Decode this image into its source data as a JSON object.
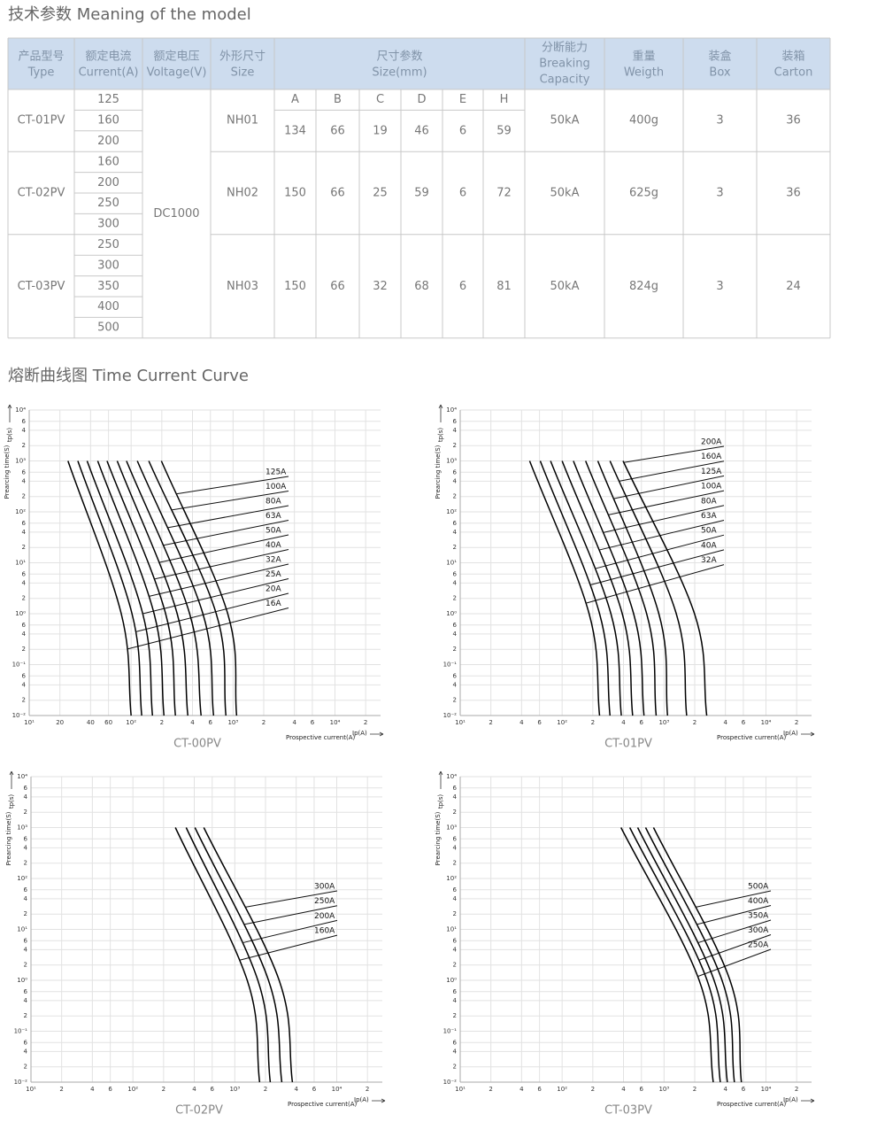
{
  "title": "技术参数 Meaning of the model",
  "table": {
    "header": [
      {
        "zh": "产品型号",
        "en": "Type"
      },
      {
        "zh": "额定电流",
        "en": "Current(A)"
      },
      {
        "zh": "额定电压",
        "en": "Voltage(V)"
      },
      {
        "zh": "外形尺寸",
        "en": "Size"
      },
      {
        "zh": "尺寸参数",
        "en": "Size(mm)"
      },
      {
        "zh": "分断能力",
        "en": [
          "Breaking",
          "Capacity"
        ]
      },
      {
        "zh": "重量",
        "en": "Weigth"
      },
      {
        "zh": "装盒",
        "en": "Box"
      },
      {
        "zh": "装箱",
        "en": "Carton"
      }
    ],
    "dims": [
      "A",
      "B",
      "C",
      "D",
      "E",
      "H"
    ],
    "voltage": "DC1000",
    "rows": [
      {
        "type": "CT-01PV",
        "currents": [
          125,
          160,
          200
        ],
        "size": "NH01",
        "dims": [
          134,
          66,
          19,
          46,
          6,
          59
        ],
        "breaking": "50kA",
        "weight": "400g",
        "box": 3,
        "carton": 36
      },
      {
        "type": "CT-02PV",
        "currents": [
          160,
          200,
          250,
          300
        ],
        "size": "NH02",
        "dims": [
          150,
          66,
          25,
          59,
          6,
          72
        ],
        "breaking": "50kA",
        "weight": "625g",
        "box": 3,
        "carton": 36
      },
      {
        "type": "CT-03PV",
        "currents": [
          250,
          300,
          350,
          400,
          500
        ],
        "size": "NH03",
        "dims": [
          150,
          66,
          32,
          68,
          6,
          81
        ],
        "breaking": "50kA",
        "weight": "824g",
        "box": 3,
        "carton": 24
      }
    ]
  },
  "curve_title": "熔断曲线图 Time Current Curve",
  "chart_data": [
    {
      "type": "line",
      "caption": "CT-00PV",
      "xlabel": "Prospective current(A)",
      "xunit": "Ip(A)",
      "ylabel": "Prearcing time(S)",
      "yunit": "tp(s)",
      "log_x": true,
      "log_y": true,
      "grid": true,
      "color": "#000000",
      "xlim": [
        10,
        28000
      ],
      "ylim": [
        0.01,
        10000
      ],
      "xticks": [
        {
          "value": 10,
          "label": "10¹"
        },
        20,
        40,
        60,
        {
          "value": 100,
          "label": "10²"
        },
        {
          "value": 200,
          "label": "2"
        },
        {
          "value": 400,
          "label": "4"
        },
        {
          "value": 600,
          "label": "6"
        },
        {
          "value": 1000,
          "label": "10³"
        },
        {
          "value": 2000,
          "label": "2"
        },
        {
          "value": 4000,
          "label": "4"
        },
        {
          "value": 6000,
          "label": "6"
        },
        {
          "value": 10000,
          "label": "10⁴"
        },
        {
          "value": 20000,
          "label": "2"
        }
      ],
      "yticks": [
        {
          "value": 0.01,
          "label": "10⁻²"
        },
        {
          "value": 0.02,
          "label": "2"
        },
        {
          "value": 0.04,
          "label": "4"
        },
        {
          "value": 0.06,
          "label": "6"
        },
        {
          "value": 0.1,
          "label": "10⁻¹"
        },
        {
          "value": 0.2,
          "label": "2"
        },
        {
          "value": 0.4,
          "label": "4"
        },
        {
          "value": 0.6,
          "label": "6"
        },
        {
          "value": 1,
          "label": "10⁰"
        },
        2,
        4,
        6,
        {
          "value": 10,
          "label": "10¹"
        },
        {
          "value": 20,
          "label": "2"
        },
        {
          "value": 40,
          "label": "4"
        },
        {
          "value": 60,
          "label": "6"
        },
        {
          "value": 100,
          "label": "10²"
        },
        {
          "value": 200,
          "label": "2"
        },
        {
          "value": 400,
          "label": "4"
        },
        {
          "value": 600,
          "label": "6"
        },
        {
          "value": 1000,
          "label": "10³"
        },
        {
          "value": 2000,
          "label": "2"
        },
        {
          "value": 4000,
          "label": "4"
        },
        {
          "value": 6000,
          "label": "6"
        },
        {
          "value": 10000,
          "label": "10⁴"
        }
      ],
      "series": [
        {
          "name": "16A",
          "x": [
            24,
            80,
            100
          ],
          "values": [
            1000,
            1,
            0.01
          ]
        },
        {
          "name": "20A",
          "x": [
            30,
            102,
            127
          ],
          "values": [
            1000,
            1,
            0.01
          ]
        },
        {
          "name": "25A",
          "x": [
            37,
            130,
            162
          ],
          "values": [
            1000,
            1,
            0.01
          ]
        },
        {
          "name": "32A",
          "x": [
            47,
            168,
            210
          ],
          "values": [
            1000,
            1,
            0.01
          ]
        },
        {
          "name": "40A",
          "x": [
            58,
            218,
            272
          ],
          "values": [
            1000,
            1,
            0.01
          ]
        },
        {
          "name": "50A",
          "x": [
            73,
            283,
            360
          ],
          "values": [
            1000,
            1,
            0.01
          ]
        },
        {
          "name": "63A",
          "x": [
            90,
            375,
            486
          ],
          "values": [
            1000,
            1,
            0.01
          ]
        },
        {
          "name": "80A",
          "x": [
            115,
            506,
            644
          ],
          "values": [
            1000,
            1,
            0.01
          ]
        },
        {
          "name": "100A",
          "x": [
            149,
            684,
            851
          ],
          "values": [
            1000,
            1,
            0.01
          ]
        },
        {
          "name": "125A",
          "x": [
            198,
            887,
            1084
          ],
          "values": [
            1000,
            1,
            0.01
          ]
        }
      ]
    },
    {
      "type": "line",
      "caption": "CT-01PV",
      "xlabel": "Prospective current(A)",
      "xunit": "Ip(A)",
      "ylabel": "Prearcing time(S)",
      "yunit": "tp(s)",
      "log_x": true,
      "log_y": true,
      "grid": true,
      "color": "#000000",
      "xlim": [
        10,
        28000
      ],
      "ylim": [
        0.01,
        10000
      ],
      "xticks": [
        {
          "value": 10,
          "label": "10¹"
        },
        {
          "value": 20,
          "label": "2"
        },
        {
          "value": 40,
          "label": "4"
        },
        {
          "value": 60,
          "label": "6"
        },
        {
          "value": 100,
          "label": "10²"
        },
        {
          "value": 200,
          "label": "2"
        },
        {
          "value": 400,
          "label": "4"
        },
        {
          "value": 600,
          "label": "6"
        },
        {
          "value": 1000,
          "label": "10³"
        },
        {
          "value": 2000,
          "label": "2"
        },
        {
          "value": 4000,
          "label": "4"
        },
        {
          "value": 6000,
          "label": "6"
        },
        {
          "value": 10000,
          "label": "10⁴"
        },
        {
          "value": 20000,
          "label": "2"
        }
      ],
      "yticks": [
        {
          "value": 0.01,
          "label": "10⁻²"
        },
        {
          "value": 0.02,
          "label": "2"
        },
        {
          "value": 0.04,
          "label": "4"
        },
        {
          "value": 0.06,
          "label": "6"
        },
        {
          "value": 0.1,
          "label": "10⁻¹"
        },
        {
          "value": 0.2,
          "label": "2"
        },
        {
          "value": 0.4,
          "label": "4"
        },
        {
          "value": 0.6,
          "label": "6"
        },
        {
          "value": 1,
          "label": "10⁰"
        },
        2,
        4,
        6,
        {
          "value": 10,
          "label": "10¹"
        },
        {
          "value": 20,
          "label": "2"
        },
        {
          "value": 40,
          "label": "4"
        },
        {
          "value": 60,
          "label": "6"
        },
        {
          "value": 100,
          "label": "10²"
        },
        {
          "value": 200,
          "label": "2"
        },
        {
          "value": 400,
          "label": "4"
        },
        {
          "value": 600,
          "label": "6"
        },
        {
          "value": 1000,
          "label": "10³"
        },
        {
          "value": 2000,
          "label": "2"
        },
        {
          "value": 4000,
          "label": "4"
        },
        {
          "value": 6000,
          "label": "6"
        },
        {
          "value": 10000,
          "label": "10⁴"
        }
      ],
      "series": [
        {
          "name": "32A",
          "x": [
            48,
            184,
            233
          ],
          "values": [
            1000,
            1,
            0.01
          ]
        },
        {
          "name": "40A",
          "x": [
            61,
            233,
            295
          ],
          "values": [
            1000,
            1,
            0.01
          ]
        },
        {
          "name": "50A",
          "x": [
            77,
            301,
            381
          ],
          "values": [
            1000,
            1,
            0.01
          ]
        },
        {
          "name": "63A",
          "x": [
            100,
            389,
            492
          ],
          "values": [
            1000,
            1,
            0.01
          ]
        },
        {
          "name": "80A",
          "x": [
            129,
            503,
            636
          ],
          "values": [
            1000,
            1,
            0.01
          ]
        },
        {
          "name": "100A",
          "x": [
            170,
            675,
            837
          ],
          "values": [
            1000,
            1,
            0.01
          ]
        },
        {
          "name": "125A",
          "x": [
            224,
            889,
            1082
          ],
          "values": [
            1000,
            1,
            0.01
          ]
        },
        {
          "name": "160A",
          "x": [
            295,
            1318,
            1667
          ],
          "values": [
            1000,
            1,
            0.01
          ]
        },
        {
          "name": "200A",
          "x": [
            396,
            1990,
            2623
          ],
          "values": [
            1000,
            1,
            0.01
          ]
        }
      ]
    },
    {
      "type": "line",
      "caption": "CT-02PV",
      "xlabel": "Prospective current(A)",
      "xunit": "Ip(A)",
      "ylabel": "Prearcing time(S)",
      "yunit": "tp(s)",
      "log_x": true,
      "log_y": true,
      "grid": true,
      "color": "#000000",
      "xlim": [
        10,
        28000
      ],
      "ylim": [
        0.01,
        10000
      ],
      "xticks": [
        {
          "value": 10,
          "label": "10¹"
        },
        {
          "value": 20,
          "label": "2"
        },
        {
          "value": 40,
          "label": "4"
        },
        {
          "value": 60,
          "label": "6"
        },
        {
          "value": 100,
          "label": "10²"
        },
        {
          "value": 200,
          "label": "2"
        },
        {
          "value": 400,
          "label": "4"
        },
        {
          "value": 600,
          "label": "6"
        },
        {
          "value": 1000,
          "label": "10³"
        },
        {
          "value": 2000,
          "label": "2"
        },
        {
          "value": 4000,
          "label": "4"
        },
        {
          "value": 6000,
          "label": "6"
        },
        {
          "value": 10000,
          "label": "10⁴"
        },
        {
          "value": 20000,
          "label": "2"
        }
      ],
      "yticks": [
        {
          "value": 0.01,
          "label": "10⁻²"
        },
        {
          "value": 0.02,
          "label": "2"
        },
        {
          "value": 0.04,
          "label": "4"
        },
        {
          "value": 0.06,
          "label": "6"
        },
        {
          "value": 0.1,
          "label": "10⁻¹"
        },
        {
          "value": 0.2,
          "label": "2"
        },
        {
          "value": 0.4,
          "label": "4"
        },
        {
          "value": 0.6,
          "label": "6"
        },
        {
          "value": 1,
          "label": "10⁰"
        },
        2,
        4,
        6,
        {
          "value": 10,
          "label": "10¹"
        },
        {
          "value": 20,
          "label": "2"
        },
        {
          "value": 40,
          "label": "4"
        },
        {
          "value": 60,
          "label": "6"
        },
        {
          "value": 100,
          "label": "10²"
        },
        {
          "value": 200,
          "label": "2"
        },
        {
          "value": 400,
          "label": "4"
        },
        {
          "value": 600,
          "label": "6"
        },
        {
          "value": 1000,
          "label": "10³"
        },
        {
          "value": 2000,
          "label": "2"
        },
        {
          "value": 4000,
          "label": "4"
        },
        {
          "value": 6000,
          "label": "6"
        },
        {
          "value": 10000,
          "label": "10⁴"
        }
      ],
      "series": [
        {
          "name": "160A",
          "x": [
            261,
            1324,
            1751
          ],
          "values": [
            1000,
            1,
            0.01
          ]
        },
        {
          "name": "200A",
          "x": [
            333,
            1683,
            2228
          ],
          "values": [
            1000,
            1,
            0.01
          ]
        },
        {
          "name": "250A",
          "x": [
            406,
            2140,
            2891
          ],
          "values": [
            1000,
            1,
            0.01
          ]
        },
        {
          "name": "300A",
          "x": [
            496,
            2722,
            3673
          ],
          "values": [
            1000,
            1,
            0.01
          ]
        }
      ]
    },
    {
      "type": "line",
      "caption": "CT-03PV",
      "xlabel": "Prospective current(A)",
      "xunit": "Ip(A)",
      "ylabel": "Prearcing time(S)",
      "yunit": "tp(s)",
      "log_x": true,
      "log_y": true,
      "grid": true,
      "color": "#000000",
      "xlim": [
        10,
        28000
      ],
      "ylim": [
        0.01,
        10000
      ],
      "xticks": [
        {
          "value": 10,
          "label": "10¹"
        },
        {
          "value": 20,
          "label": "2"
        },
        {
          "value": 40,
          "label": "4"
        },
        {
          "value": 60,
          "label": "6"
        },
        {
          "value": 100,
          "label": "10²"
        },
        {
          "value": 200,
          "label": "2"
        },
        {
          "value": 400,
          "label": "4"
        },
        {
          "value": 600,
          "label": "6"
        },
        {
          "value": 1000,
          "label": "10³"
        },
        {
          "value": 2000,
          "label": "2"
        },
        {
          "value": 4000,
          "label": "4"
        },
        {
          "value": 6000,
          "label": "6"
        },
        {
          "value": 10000,
          "label": "10⁴"
        },
        {
          "value": 20000,
          "label": "2"
        }
      ],
      "yticks": [
        {
          "value": 0.01,
          "label": "10⁻²"
        },
        {
          "value": 0.02,
          "label": "2"
        },
        {
          "value": 0.04,
          "label": "4"
        },
        {
          "value": 0.06,
          "label": "6"
        },
        {
          "value": 0.1,
          "label": "10⁻¹"
        },
        {
          "value": 0.2,
          "label": "2"
        },
        {
          "value": 0.4,
          "label": "4"
        },
        {
          "value": 0.6,
          "label": "6"
        },
        {
          "value": 1,
          "label": "10⁰"
        },
        2,
        4,
        6,
        {
          "value": 10,
          "label": "10¹"
        },
        {
          "value": 20,
          "label": "2"
        },
        {
          "value": 40,
          "label": "4"
        },
        {
          "value": 60,
          "label": "6"
        },
        {
          "value": 100,
          "label": "10²"
        },
        {
          "value": 200,
          "label": "2"
        },
        {
          "value": 400,
          "label": "4"
        },
        {
          "value": 600,
          "label": "6"
        },
        {
          "value": 1000,
          "label": "10³"
        },
        {
          "value": 2000,
          "label": "2"
        },
        {
          "value": 4000,
          "label": "4"
        },
        {
          "value": 6000,
          "label": "6"
        },
        {
          "value": 10000,
          "label": "10⁴"
        }
      ],
      "series": [
        {
          "name": "250A",
          "x": [
            378,
            2212,
            3040
          ],
          "values": [
            1000,
            1,
            0.01
          ]
        },
        {
          "name": "300A",
          "x": [
            461,
            2643,
            3565
          ],
          "values": [
            1000,
            1,
            0.01
          ]
        },
        {
          "name": "350A",
          "x": [
            551,
            3097,
            4180
          ],
          "values": [
            1000,
            1,
            0.01
          ]
        },
        {
          "name": "400A",
          "x": [
            659,
            3707,
            4900
          ],
          "values": [
            1000,
            1,
            0.01
          ]
        },
        {
          "name": "500A",
          "x": [
            788,
            4436,
            5740
          ],
          "values": [
            1000,
            1,
            0.01
          ]
        }
      ]
    }
  ]
}
